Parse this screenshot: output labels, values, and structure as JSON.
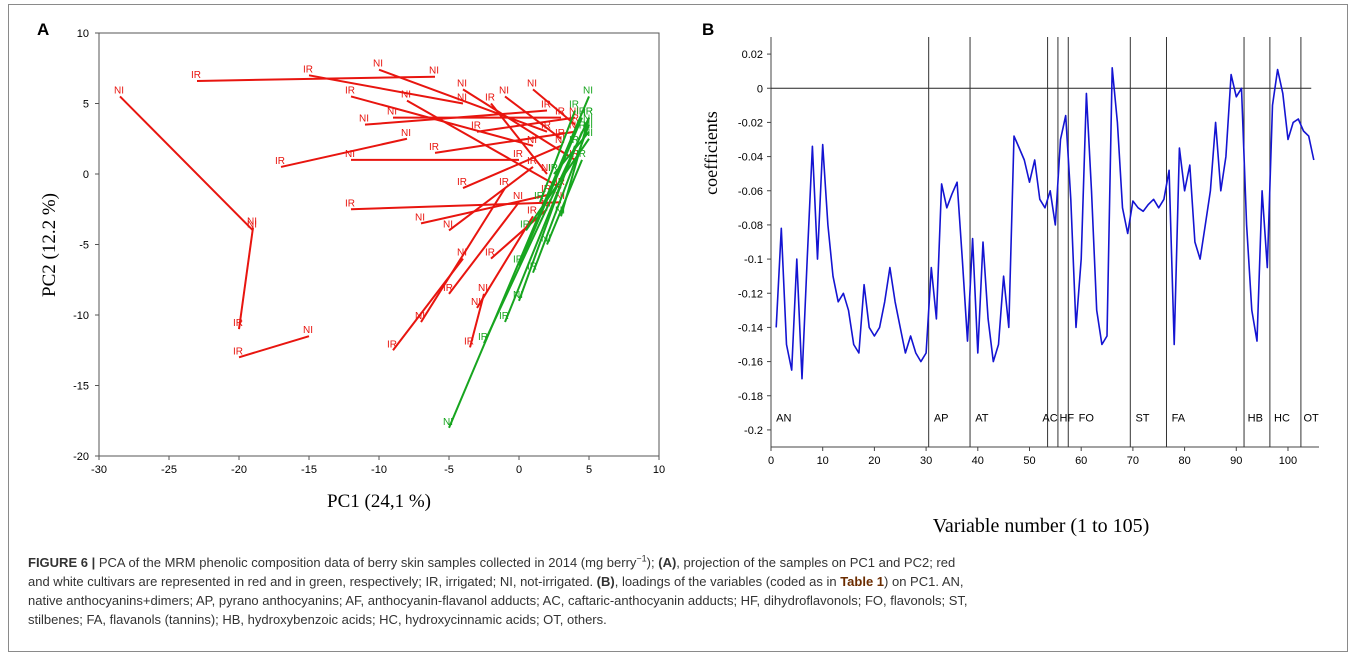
{
  "panel_a": {
    "letter": "A",
    "colors": {
      "red": "#e8150f",
      "green": "#17a51f"
    },
    "chart_data": {
      "type": "scatter",
      "title": "",
      "xlabel": "PC1 (24,1 %)",
      "ylabel": "PC2 (12.2 %)",
      "xlim": [
        -30,
        10
      ],
      "ylim": [
        -20,
        10
      ],
      "xticks": [
        "-30",
        "-25",
        "-20",
        "-15",
        "-10",
        "-5",
        "0",
        "5",
        "10"
      ],
      "yticks": [
        "10",
        "5",
        "0",
        "-5",
        "-10",
        "-15",
        "-20"
      ],
      "legend": "none",
      "series": [
        {
          "color": "red",
          "segments": [
            {
              "x1": -28.5,
              "y1": 5.5,
              "x2": -19,
              "y2": -4,
              "l1": "NI",
              "l2": "NI"
            },
            {
              "x1": -23,
              "y1": 6.6,
              "x2": -6,
              "y2": 6.9,
              "l1": "IR",
              "l2": "NI"
            },
            {
              "x1": -19,
              "y1": -3.8,
              "x2": -20,
              "y2": -11,
              "l1": "NI",
              "l2": "IR"
            },
            {
              "x1": -20,
              "y1": -13,
              "x2": -15,
              "y2": -11.5,
              "l1": "IR",
              "l2": "NI"
            },
            {
              "x1": -17,
              "y1": 0.5,
              "x2": -8,
              "y2": 2.5,
              "l1": "IR",
              "l2": "NI"
            },
            {
              "x1": -15,
              "y1": 7,
              "x2": -4,
              "y2": 5,
              "l1": "IR",
              "l2": "NI"
            },
            {
              "x1": -12,
              "y1": 5.5,
              "x2": 1,
              "y2": 2,
              "l1": "IR",
              "l2": "NI"
            },
            {
              "x1": -12,
              "y1": 1,
              "x2": 0,
              "y2": 1,
              "l1": "NI",
              "l2": "IR"
            },
            {
              "x1": -12,
              "y1": -2.5,
              "x2": 3,
              "y2": -2,
              "l1": "IR",
              "l2": "NI"
            },
            {
              "x1": -10,
              "y1": 7.4,
              "x2": 2,
              "y2": 3,
              "l1": "NI",
              "l2": "IR"
            },
            {
              "x1": -9,
              "y1": 4,
              "x2": 3,
              "y2": 4,
              "l1": "NI",
              "l2": "IR"
            },
            {
              "x1": -7,
              "y1": -10.5,
              "x2": -1,
              "y2": -1,
              "l1": "NI",
              "l2": "IR"
            },
            {
              "x1": -9,
              "y1": -12.5,
              "x2": -4,
              "y2": -6,
              "l1": "IR",
              "l2": "NI"
            },
            {
              "x1": -5,
              "y1": -8.5,
              "x2": 0,
              "y2": -2,
              "l1": "IR",
              "l2": "NI"
            },
            {
              "x1": -3,
              "y1": -9.5,
              "x2": 1,
              "y2": -3,
              "l1": "NI",
              "l2": "IR"
            },
            {
              "x1": -3.5,
              "y1": -12.3,
              "x2": -2.5,
              "y2": -8.5,
              "l1": "IR",
              "l2": "NI"
            },
            {
              "x1": -8,
              "y1": 5.2,
              "x2": 3,
              "y2": -1,
              "l1": "NI",
              "l2": "IR"
            },
            {
              "x1": -6,
              "y1": 1.5,
              "x2": 4,
              "y2": 3,
              "l1": "IR",
              "l2": "NI"
            },
            {
              "x1": -4,
              "y1": 6,
              "x2": 4,
              "y2": 1,
              "l1": "NI",
              "l2": "IR"
            },
            {
              "x1": -2,
              "y1": 5,
              "x2": 2,
              "y2": 0,
              "l1": "IR",
              "l2": "NI"
            },
            {
              "x1": -5,
              "y1": -4,
              "x2": 1,
              "y2": 0.5,
              "l1": "NI",
              "l2": "IR"
            },
            {
              "x1": -4,
              "y1": -1,
              "x2": 3,
              "y2": 2,
              "l1": "IR",
              "l2": "NI"
            },
            {
              "x1": -11,
              "y1": 3.5,
              "x2": 2,
              "y2": 4.5,
              "l1": "NI",
              "l2": "IR"
            },
            {
              "x1": -3,
              "y1": 3,
              "x2": 4,
              "y2": 4,
              "l1": "IR",
              "l2": "NI"
            },
            {
              "x1": -1,
              "y1": 5.5,
              "x2": 3,
              "y2": 2.5,
              "l1": "NI",
              "l2": "IR"
            },
            {
              "x1": 1,
              "y1": 6,
              "x2": 4,
              "y2": 3.5,
              "l1": "NI",
              "l2": "IR"
            },
            {
              "x1": -7,
              "y1": -3.5,
              "x2": 2,
              "y2": -1.5,
              "l1": "NI",
              "l2": "IR"
            },
            {
              "x1": -2,
              "y1": -6,
              "x2": 2,
              "y2": -2.5,
              "l1": "IR",
              "l2": "NI"
            }
          ]
        },
        {
          "color": "green",
          "segments": [
            {
              "x1": -5,
              "y1": -18,
              "x2": 5,
              "y2": 5.5,
              "l1": "NI",
              "l2": "NI"
            },
            {
              "x1": -2.5,
              "y1": -12,
              "x2": 5,
              "y2": 4,
              "l1": "IR",
              "l2": "IR"
            },
            {
              "x1": -1,
              "y1": -10.5,
              "x2": 4.5,
              "y2": 3,
              "l1": "IR",
              "l2": "IR"
            },
            {
              "x1": 0,
              "y1": -9,
              "x2": 4,
              "y2": 2,
              "l1": "NI",
              "l2": "IR"
            },
            {
              "x1": 1,
              "y1": -7,
              "x2": 5,
              "y2": 3.5,
              "l1": "IR",
              "l2": "NI"
            },
            {
              "x1": 2,
              "y1": -5,
              "x2": 4.5,
              "y2": 1,
              "l1": "NI",
              "l2": "IR"
            },
            {
              "x1": 0.5,
              "y1": -4,
              "x2": 5,
              "y2": 2.5,
              "l1": "IR",
              "l2": "NI"
            },
            {
              "x1": 1.5,
              "y1": -2,
              "x2": 4,
              "y2": 4.5,
              "l1": "IR",
              "l2": "IR"
            },
            {
              "x1": 3,
              "y1": -3,
              "x2": 5,
              "y2": 4,
              "l1": "NI",
              "l2": "IR"
            },
            {
              "x1": 2.5,
              "y1": 0,
              "x2": 5,
              "y2": 3,
              "l1": "IR",
              "l2": "NI"
            },
            {
              "x1": 0,
              "y1": -6.5,
              "x2": 4.5,
              "y2": 4,
              "l1": "IR",
              "l2": "IR"
            }
          ]
        }
      ]
    }
  },
  "panel_b": {
    "letter": "B",
    "line_color": "#1414d2",
    "chart_data": {
      "type": "line",
      "title": "",
      "xlabel": "Variable number (1 to 105)",
      "ylabel": "coefficients",
      "xlim": [
        0,
        106
      ],
      "ylim": [
        -0.21,
        0.03
      ],
      "xticks": [
        "0",
        "10",
        "20",
        "30",
        "40",
        "50",
        "60",
        "70",
        "80",
        "90",
        "100"
      ],
      "yticks": [
        "0.02",
        "0",
        "-0.02",
        "-0.04",
        "-0.06",
        "-0.08",
        "-0.1",
        "-0.12",
        "-0.14",
        "-0.16",
        "-0.18",
        "-0.2"
      ],
      "zero_line": 0,
      "separators": [
        30.5,
        38.5,
        53.5,
        55.5,
        57.5,
        69.5,
        76.5,
        91.5,
        96.5,
        102.5
      ],
      "group_labels": [
        {
          "label": "AN",
          "x": 1
        },
        {
          "label": "AP",
          "x": 31.5
        },
        {
          "label": "AT",
          "x": 39.5
        },
        {
          "label": "AC",
          "x": 52.5
        },
        {
          "label": "HF",
          "x": 55.8
        },
        {
          "label": "FO",
          "x": 59.5
        },
        {
          "label": "ST",
          "x": 70.5
        },
        {
          "label": "FA",
          "x": 77.5
        },
        {
          "label": "HB",
          "x": 92.2
        },
        {
          "label": "HC",
          "x": 97.3
        },
        {
          "label": "OT",
          "x": 103
        }
      ],
      "series": [
        {
          "x": [
            1,
            2,
            3,
            4,
            5,
            6,
            7,
            8,
            9,
            10,
            11,
            12,
            13,
            14,
            15,
            16,
            17,
            18,
            19,
            20,
            21,
            22,
            23,
            24,
            25,
            26,
            27,
            28,
            29,
            30,
            31,
            32,
            33,
            34,
            35,
            36,
            37,
            38,
            39,
            40,
            41,
            42,
            43,
            44,
            45,
            46,
            47,
            48,
            49,
            50,
            51,
            52,
            53,
            54,
            55,
            56,
            57,
            58,
            59,
            60,
            61,
            62,
            63,
            64,
            65,
            66,
            67,
            68,
            69,
            70,
            71,
            72,
            73,
            74,
            75,
            76,
            77,
            78,
            79,
            80,
            81,
            82,
            83,
            84,
            85,
            86,
            87,
            88,
            89,
            90,
            91,
            92,
            93,
            94,
            95,
            96,
            97,
            98,
            99,
            100,
            101,
            102,
            103,
            104,
            105
          ],
          "values": [
            -0.14,
            -0.082,
            -0.15,
            -0.165,
            -0.1,
            -0.17,
            -0.1,
            -0.034,
            -0.1,
            -0.033,
            -0.08,
            -0.11,
            -0.125,
            -0.12,
            -0.13,
            -0.15,
            -0.155,
            -0.115,
            -0.14,
            -0.145,
            -0.14,
            -0.125,
            -0.105,
            -0.125,
            -0.14,
            -0.155,
            -0.145,
            -0.155,
            -0.16,
            -0.155,
            -0.105,
            -0.135,
            -0.056,
            -0.07,
            -0.062,
            -0.055,
            -0.1,
            -0.148,
            -0.088,
            -0.155,
            -0.09,
            -0.135,
            -0.16,
            -0.15,
            -0.11,
            -0.14,
            -0.028,
            -0.035,
            -0.042,
            -0.055,
            -0.042,
            -0.065,
            -0.07,
            -0.06,
            -0.08,
            -0.03,
            -0.016,
            -0.065,
            -0.14,
            -0.1,
            -0.003,
            -0.06,
            -0.13,
            -0.15,
            -0.145,
            0.012,
            -0.02,
            -0.07,
            -0.085,
            -0.066,
            -0.07,
            -0.072,
            -0.068,
            -0.065,
            -0.07,
            -0.065,
            -0.048,
            -0.15,
            -0.035,
            -0.06,
            -0.045,
            -0.09,
            -0.1,
            -0.08,
            -0.06,
            -0.02,
            -0.06,
            -0.04,
            0.008,
            -0.005,
            0,
            -0.08,
            -0.13,
            -0.148,
            -0.06,
            -0.105,
            -0.01,
            0.011,
            -0.003,
            -0.03,
            -0.02,
            -0.018,
            -0.025,
            -0.028,
            -0.042
          ]
        }
      ]
    }
  },
  "caption": {
    "fig_label": "FIGURE 6 |",
    "l1a": " PCA of the MRM phenolic composition data of berry skin samples collected in 2014 (mg berry",
    "l1sup": "−1",
    "l1b": "); ",
    "l1bold": "(A)",
    "l1c": ", projection of the samples on PC1 and PC2; red",
    "l2": "and white cultivars are represented in red and in green, respectively; IR, irrigated; NI, not-irrigated. ",
    "l2bold": "(B)",
    "l2b": ", loadings of the variables (coded as in ",
    "l2table": "Table 1",
    "l2c": ") on PC1. AN,",
    "l3": "native anthocyanins+dimers; AP, pyrano anthocyanins; AF, anthocyanin-flavanol adducts; AC, caftaric-anthocyanin adducts; HF, dihydroflavonols; FO, flavonols; ST,",
    "l4": "stilbenes; FA, flavanols (tannins); HB, hydroxybenzoic acids; HC, hydroxycinnamic acids; OT, others."
  }
}
